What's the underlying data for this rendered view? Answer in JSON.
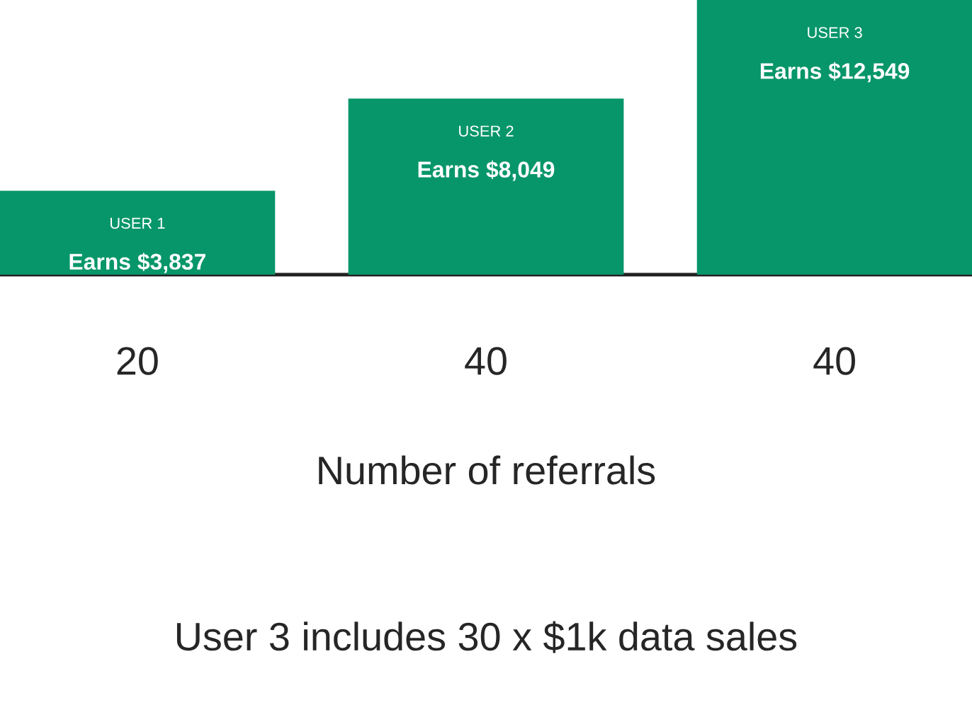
{
  "chart_data": {
    "type": "bar",
    "categories": [
      "20",
      "40",
      "40"
    ],
    "xlabel": "Number of referrals",
    "series": [
      {
        "name": "USER 1",
        "color": "#079669",
        "values": [
          3837,
          null,
          null
        ],
        "value_labels": [
          "Earns $3,837",
          null,
          null
        ]
      },
      {
        "name": "USER 2",
        "color": "#079669",
        "values": [
          null,
          8049,
          null
        ],
        "value_labels": [
          null,
          "Earns $8,049",
          null
        ]
      },
      {
        "name": "USER 3",
        "color": "#079669",
        "values": [
          null,
          null,
          12549
        ],
        "value_labels": [
          null,
          null,
          "Earns $12,549"
        ]
      }
    ],
    "annotations": [
      "User 3 includes 30 x $1k data sales"
    ]
  }
}
